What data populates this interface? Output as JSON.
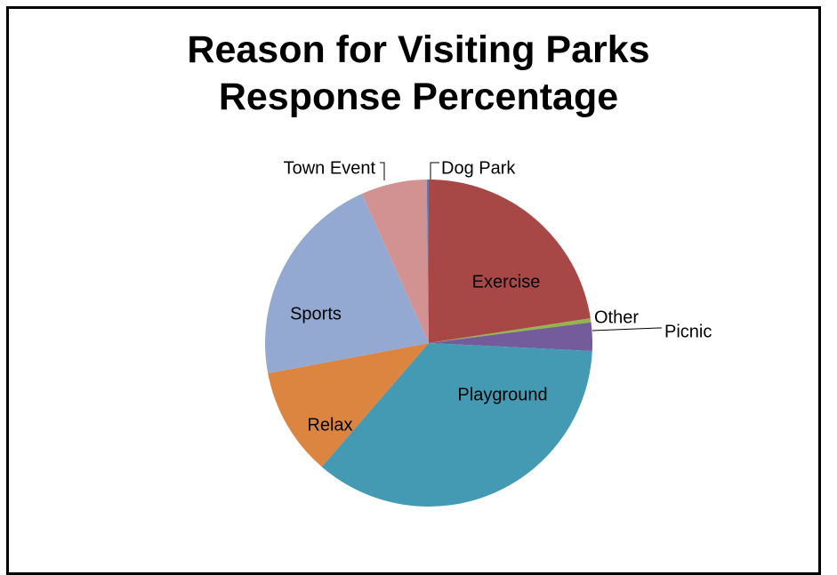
{
  "chart_data": {
    "type": "pie",
    "title": "Reason for Visiting Parks",
    "subtitle": "Response Percentage",
    "categories": [
      "Exercise",
      "Other",
      "Picnic",
      "Playground",
      "Relax",
      "Sports",
      "Town Event",
      "Dog Park"
    ],
    "values": [
      22.6,
      0.4,
      2.8,
      35.6,
      10.7,
      21.3,
      6.5,
      0.2
    ],
    "unit": "%",
    "colors": [
      "#A84846",
      "#94B44E",
      "#745B9B",
      "#449AB3",
      "#DB8541",
      "#93A9D1",
      "#D39292",
      "#4F81BD"
    ],
    "legend": "none",
    "label_style": {
      "Exercise": "inside",
      "Other": "outside",
      "Picnic": "outside",
      "Playground": "inside",
      "Relax": "inside",
      "Sports": "inside",
      "Town Event": "outside",
      "Dog Park": "outside"
    }
  }
}
